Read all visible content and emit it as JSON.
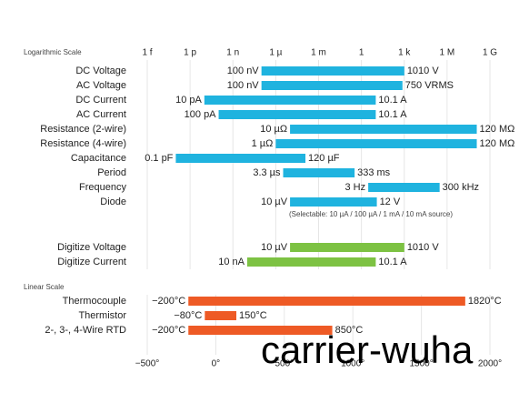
{
  "chart_data": [
    {
      "type": "range",
      "title": "Logarithmic Scale",
      "xscale": "log",
      "xlim": [
        1e-15,
        1000000000.0
      ],
      "xticks": [
        {
          "value": 1e-15,
          "label": "1 f"
        },
        {
          "value": 1e-12,
          "label": "1 p"
        },
        {
          "value": 1e-09,
          "label": "1 n"
        },
        {
          "value": 1e-06,
          "label": "1 µ"
        },
        {
          "value": 0.001,
          "label": "1 m"
        },
        1,
        {
          "value": 1000,
          "label": "1 k"
        },
        {
          "value": 1000000,
          "label": "1 M"
        },
        {
          "value": 1000000000,
          "label": "1 G"
        }
      ],
      "categories": [
        "DC Voltage",
        "AC Voltage",
        "DC Current",
        "AC Current",
        "Resistance (2-wire)",
        "Resistance (4-wire)",
        "Capacitance",
        "Period",
        "Frequency",
        "Diode",
        "Digitize Voltage",
        "Digitize Current"
      ],
      "start": [
        1e-07,
        1e-07,
        1e-11,
        1e-10,
        1e-05,
        1e-06,
        1e-13,
        3.3e-06,
        3,
        1e-05,
        1e-05,
        1e-08
      ],
      "end": [
        1010,
        750,
        10.1,
        10.1,
        120000000,
        120000000,
        0.00012,
        0.333,
        300000,
        12,
        1010,
        10.1
      ],
      "start_labels": [
        "100 nV",
        "100 nV",
        "10 pA",
        "100 pA",
        "10 µΩ",
        "1 µΩ",
        "0.1 pF",
        "3.3 µs",
        "3 Hz",
        "10 µV",
        "10 µV",
        "10 nA"
      ],
      "end_labels": [
        "1010 V",
        "750 VRMS",
        "10.1 A",
        "10.1 A",
        "120 MΩ",
        "120 MΩ",
        "120 µF",
        "333 ms",
        "300 kHz",
        "12 V",
        "1010 V",
        "10.1 A"
      ],
      "colors": [
        "#1fb3df",
        "#1fb3df",
        "#1fb3df",
        "#1fb3df",
        "#1fb3df",
        "#1fb3df",
        "#1fb3df",
        "#1fb3df",
        "#1fb3df",
        "#1fb3df",
        "#7dc243",
        "#7dc243"
      ],
      "annotation": "(Selectable: 10 µA / 100 µA / 1 mA / 10 mA source)"
    },
    {
      "type": "range",
      "title": "Linear Scale",
      "xscale": "linear",
      "xlim": [
        -500,
        2000
      ],
      "xticks": [
        {
          "value": -500,
          "label": "−500°"
        },
        {
          "value": 0,
          "label": "0°"
        },
        {
          "value": 500,
          "label": "500°"
        },
        {
          "value": 1000,
          "label": "1000°"
        },
        {
          "value": 1500,
          "label": "1500°"
        },
        {
          "value": 2000,
          "label": "2000°"
        }
      ],
      "categories": [
        "Thermocouple",
        "Thermistor",
        "2-, 3-, 4-Wire RTD"
      ],
      "start": [
        -200,
        -80,
        -200
      ],
      "end": [
        1820,
        150,
        850
      ],
      "start_labels": [
        "−200°C",
        "−80°C",
        "−200°C"
      ],
      "end_labels": [
        "1820°C",
        "150°C",
        "850°C"
      ],
      "colors": [
        "#ee5a25",
        "#ee5a25",
        "#ee5a25"
      ]
    }
  ],
  "watermark": "carrier-wuha"
}
